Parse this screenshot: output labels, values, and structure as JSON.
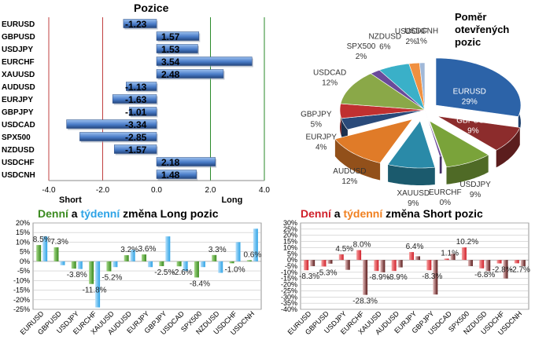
{
  "top_title": "Pozice",
  "pie_title_lines": [
    "Poměr",
    "otevřených",
    "pozic"
  ],
  "daily_title": {
    "part1": "Denní",
    "part2": " a ",
    "part3": "týdenní",
    "part4": " změna Long pozic"
  },
  "short_title": {
    "part1": "Denní",
    "part2": " a ",
    "part3": "týdenní",
    "part4": " změna Short pozic"
  },
  "colors": {
    "green": "#3a8a1e",
    "blue": "#2da3e6",
    "red": "#d0202a",
    "orange": "#f08020",
    "black": "#000000"
  },
  "chart_data": [
    {
      "type": "bar",
      "orientation": "horizontal",
      "title": "Pozice",
      "categories": [
        "EURUSD",
        "GBPUSD",
        "USDJPY",
        "EURCHF",
        "XAUUSD",
        "AUDUSD",
        "EURJPY",
        "GBPJPY",
        "USDCAD",
        "SPX500",
        "NZDUSD",
        "USDCHF",
        "USDCNH"
      ],
      "values": [
        -1.23,
        1.57,
        1.53,
        3.54,
        2.48,
        -1.13,
        -1.63,
        -1.01,
        -3.34,
        -2.85,
        -1.57,
        2.18,
        1.48
      ],
      "value_labels": [
        "-1.23",
        "1.57",
        "1.53",
        "3.54",
        "2.48",
        "-1.13",
        "-1.63",
        "-1.01",
        "-3.34",
        "-2.85",
        "-1.57",
        "2.18",
        "1.48"
      ],
      "xlim": [
        -4,
        4
      ],
      "xticks": [
        "-4.0",
        "-2.0",
        "0.0",
        "2.0",
        "4.0"
      ],
      "short_label": "Short",
      "long_label": "Long"
    },
    {
      "type": "pie",
      "title": "Poměr otevřených pozic",
      "slices": [
        {
          "label": "EURUSD",
          "pct": "29%",
          "value": 29,
          "color": "#2c63a8"
        },
        {
          "label": "GBPUSD",
          "pct": "9%",
          "value": 9,
          "color": "#8c2c2c"
        },
        {
          "label": "USDJPY",
          "pct": "9%",
          "value": 9,
          "color": "#7aa33a"
        },
        {
          "label": "EURCHF",
          "pct": "0%",
          "value": 0.4,
          "color": "#6a4a9a"
        },
        {
          "label": "XAUUSD",
          "pct": "9%",
          "value": 9,
          "color": "#2a8aa8"
        },
        {
          "label": "AUDUSD",
          "pct": "12%",
          "value": 12,
          "color": "#e07b28"
        },
        {
          "label": "EURJPY",
          "pct": "4%",
          "value": 4,
          "color": "#2a4a7a"
        },
        {
          "label": "GBPJPY",
          "pct": "5%",
          "value": 5,
          "color": "#c03030"
        },
        {
          "label": "USDCAD",
          "pct": "12%",
          "value": 12,
          "color": "#8aa848"
        },
        {
          "label": "SPX500",
          "pct": "2%",
          "value": 2,
          "color": "#6a4a9a"
        },
        {
          "label": "NZDUSD",
          "pct": "6%",
          "value": 6,
          "color": "#3ab0c8"
        },
        {
          "label": "USDCHF",
          "pct": "2%",
          "value": 2,
          "color": "#f09040"
        },
        {
          "label": "USDCNH",
          "pct": "1%",
          "value": 1,
          "color": "#a0b8d8"
        }
      ]
    },
    {
      "type": "bar",
      "title": "Denní a týdenní změna Long pozic",
      "categories": [
        "EURUSD",
        "GBPUSD",
        "USDJPY",
        "EURCHF",
        "XAUUSD",
        "AUDUSD",
        "EURJPY",
        "GBPJPY",
        "USDCAD",
        "SPX500",
        "NZDUSD",
        "USDCHF",
        "USDCNH"
      ],
      "series": [
        {
          "name": "Denní",
          "values": [
            8.5,
            7.3,
            -3.8,
            -11.8,
            -5.2,
            3.2,
            3.6,
            -2.5,
            -2.6,
            -8.4,
            3.3,
            -1.0,
            0.6
          ]
        },
        {
          "name": "týdenní",
          "values": [
            13,
            -2,
            -4,
            -24,
            -3,
            6,
            -3,
            13,
            -5,
            -3,
            -6,
            10,
            17
          ]
        }
      ],
      "data_labels": [
        "8.5%",
        "7.3%",
        "-3.8%",
        "-11.8%",
        "-5.2%",
        "3.2%",
        "3.6%",
        "-2.5%",
        "-2.6%",
        "-8.4%",
        "3.3%",
        "-1.0%",
        "0.6%"
      ],
      "ylim": [
        -25,
        20
      ],
      "yticks": [
        "20%",
        "15%",
        "10%",
        "5%",
        "0%",
        "-5%",
        "-10%",
        "-15%",
        "-20%",
        "-25%"
      ]
    },
    {
      "type": "bar",
      "title": "Denní a týdenní změna Short pozic",
      "categories": [
        "EURUSD",
        "GBPUSD",
        "USDJPY",
        "EURCHF",
        "XAUUSD",
        "AUDUSD",
        "EURJPY",
        "GBPJPY",
        "USDCAD",
        "SPX500",
        "NZDUSD",
        "USDCHF",
        "USDCNH"
      ],
      "series": [
        {
          "name": "Denní",
          "values": [
            -8.3,
            -5.3,
            4.5,
            8.0,
            -8.9,
            -8.9,
            6.4,
            -8.3,
            1.1,
            10.2,
            -6.8,
            -2.8,
            -2.7
          ]
        },
        {
          "name": "týdenní",
          "values": [
            -5,
            -3,
            -8,
            -28.3,
            -10,
            -6,
            3,
            -28,
            5,
            -5,
            -9,
            -15,
            -5
          ]
        }
      ],
      "data_labels": [
        "-8.3%",
        "-5.3%",
        "4.5%",
        "8.0%",
        "-8.9%",
        "-8.9%",
        "6.4%",
        "-8.3%",
        "1.1%",
        "10.2%",
        "-6.8%",
        "-2.8%",
        "-2.7%",
        "-28.3%"
      ],
      "ylim": [
        -40,
        30
      ],
      "yticks": [
        "30%",
        "25%",
        "20%",
        "15%",
        "10%",
        "5%",
        "0%",
        "-5%",
        "-10%",
        "-15%",
        "-20%",
        "-25%",
        "-30%",
        "-35%",
        "-40%"
      ]
    }
  ]
}
